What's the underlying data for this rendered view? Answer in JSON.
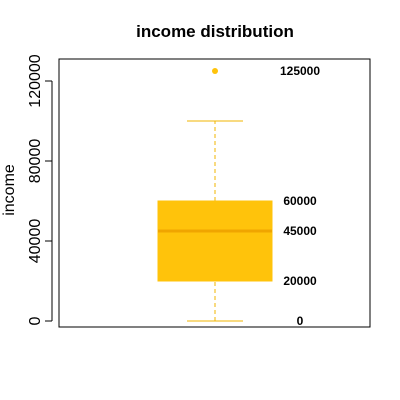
{
  "chart_data": {
    "type": "boxplot",
    "title": "income distribution",
    "xlabel": "",
    "ylabel": "income",
    "ylim": [
      -3000,
      131000
    ],
    "yticks": [
      0,
      40000,
      80000,
      120000
    ],
    "box": {
      "min": 0,
      "q1": 20000,
      "median": 45000,
      "q3": 60000,
      "max": 100000
    },
    "outliers": [
      125000
    ],
    "annotations": [
      "125000",
      "60000",
      "45000",
      "20000",
      "0"
    ],
    "annotation_values": [
      125000,
      60000,
      45000,
      20000,
      0
    ],
    "colors": {
      "box_fill": "#FFC30B",
      "median_line": "#F0A500",
      "whisker": "#F0B400",
      "outlier": "#FFC30B"
    },
    "grid": false
  }
}
